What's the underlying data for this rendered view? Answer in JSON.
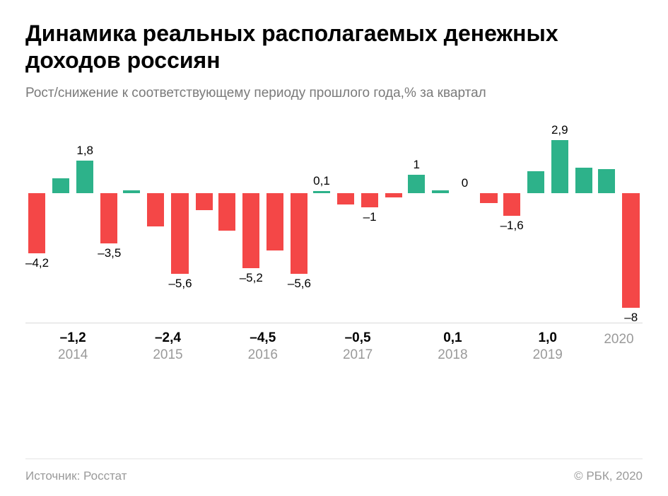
{
  "title": "Динамика реальных располагаемых денежных доходов россиян",
  "subtitle": "Рост/снижение к соответствующему периоду прошлого года,% за квартал",
  "source": "Источник: Росстат",
  "copyright": "© РБК, 2020",
  "chart": {
    "type": "bar",
    "positive_color": "#2db28a",
    "negative_color": "#f44747",
    "label_color": "#000000",
    "baseline_pct": 33,
    "ymax": 3.5,
    "ymin": -9,
    "groups": [
      {
        "year": "2014",
        "total": "–1,2",
        "bars": [
          {
            "value": -4.2,
            "label": "–4,2",
            "show": true
          },
          {
            "value": 0.8,
            "label": "",
            "show": false
          },
          {
            "value": 1.8,
            "label": "1,8",
            "show": true
          },
          {
            "value": -3.5,
            "label": "–3,5",
            "show": true
          }
        ]
      },
      {
        "year": "2015",
        "total": "–2,4",
        "bars": [
          {
            "value": 0.15,
            "label": "",
            "show": false
          },
          {
            "value": -2.3,
            "label": "",
            "show": false
          },
          {
            "value": -5.6,
            "label": "–5,6",
            "show": true
          },
          {
            "value": -1.2,
            "label": "",
            "show": false
          }
        ]
      },
      {
        "year": "2016",
        "total": "–4,5",
        "bars": [
          {
            "value": -2.6,
            "label": "",
            "show": false
          },
          {
            "value": -5.2,
            "label": "–5,2",
            "show": true
          },
          {
            "value": -4.0,
            "label": "",
            "show": false
          },
          {
            "value": -5.6,
            "label": "–5,6",
            "show": true
          }
        ]
      },
      {
        "year": "2017",
        "total": "–0,5",
        "bars": [
          {
            "value": 0.1,
            "label": "0,1",
            "show": true
          },
          {
            "value": -0.8,
            "label": "",
            "show": false
          },
          {
            "value": -1.0,
            "label": "–1",
            "show": true
          },
          {
            "value": -0.3,
            "label": "",
            "show": false
          }
        ]
      },
      {
        "year": "2018",
        "total": "0,1",
        "bars": [
          {
            "value": 1.0,
            "label": "1",
            "show": true
          },
          {
            "value": 0.15,
            "label": "",
            "show": false
          },
          {
            "value": 0.0,
            "label": "0",
            "show": true
          },
          {
            "value": -0.7,
            "label": "",
            "show": false
          }
        ]
      },
      {
        "year": "2019",
        "total": "1,0",
        "bars": [
          {
            "value": -1.6,
            "label": "–1,6",
            "show": true
          },
          {
            "value": 1.2,
            "label": "",
            "show": false
          },
          {
            "value": 2.9,
            "label": "2,9",
            "show": true
          },
          {
            "value": 1.4,
            "label": "",
            "show": false
          }
        ]
      },
      {
        "year": "2020",
        "total": "",
        "bars": [
          {
            "value": 1.3,
            "label": "",
            "show": false
          },
          {
            "value": -8.0,
            "label": "–8",
            "show": true
          }
        ]
      }
    ]
  }
}
